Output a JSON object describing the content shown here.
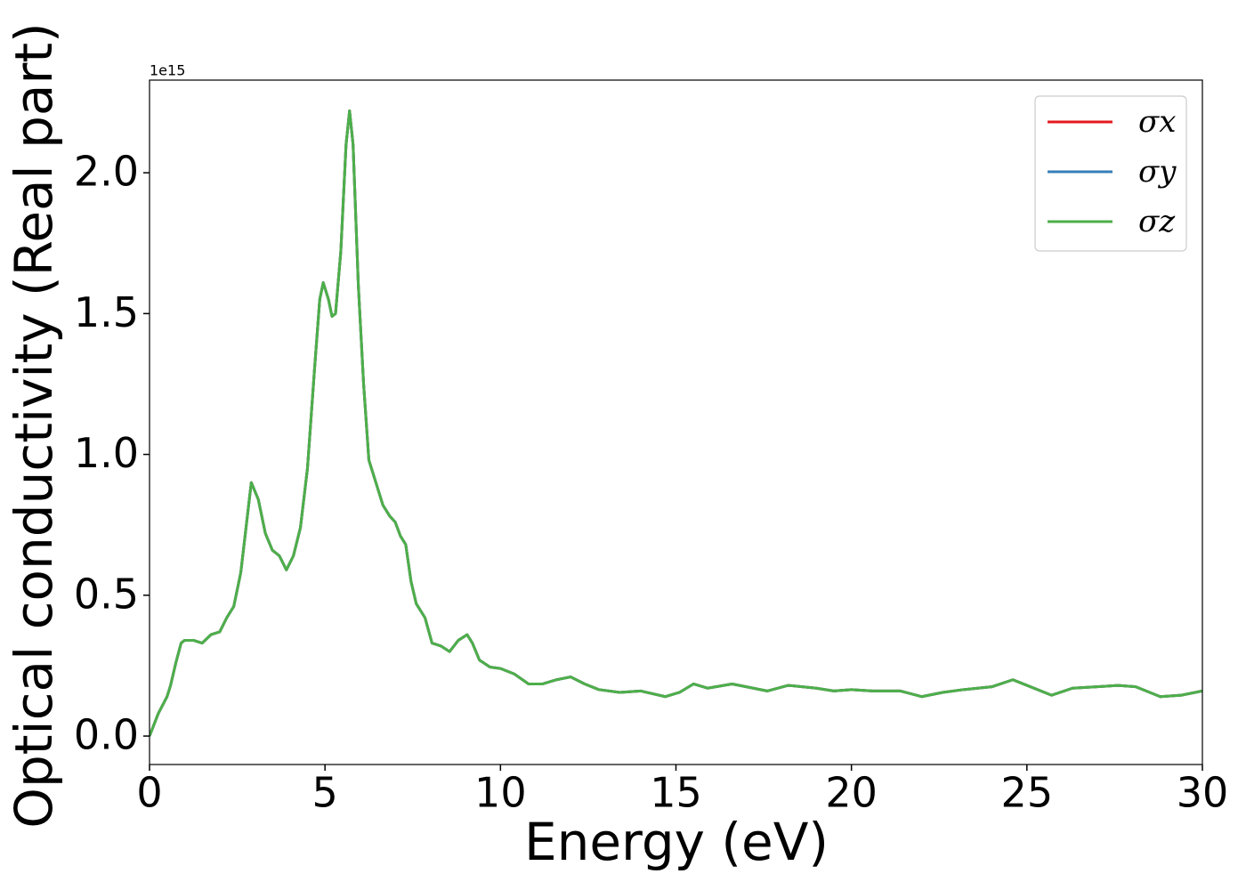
{
  "chart_data": {
    "type": "line",
    "x_label": "Energy (eV)",
    "y_label": "Optical conductivity (Real part)",
    "y_offset_label": "1e15",
    "x": [
      0,
      0.25,
      0.5,
      0.6,
      0.75,
      0.9,
      1.0,
      1.25,
      1.5,
      1.75,
      2.0,
      2.2,
      2.4,
      2.6,
      2.75,
      2.9,
      3.1,
      3.3,
      3.5,
      3.7,
      3.9,
      4.1,
      4.3,
      4.5,
      4.7,
      4.85,
      4.95,
      5.1,
      5.2,
      5.3,
      5.45,
      5.6,
      5.7,
      5.8,
      5.95,
      6.1,
      6.25,
      6.45,
      6.65,
      6.85,
      7.0,
      7.15,
      7.3,
      7.45,
      7.6,
      7.85,
      8.05,
      8.3,
      8.55,
      8.8,
      9.05,
      9.2,
      9.4,
      9.7,
      10.0,
      10.4,
      10.8,
      11.2,
      11.6,
      12.0,
      12.4,
      12.8,
      13.4,
      14.0,
      14.7,
      15.1,
      15.5,
      15.9,
      16.6,
      17.0,
      17.6,
      18.2,
      19.0,
      19.5,
      20.0,
      20.6,
      21.4,
      22.0,
      22.6,
      23.2,
      24.0,
      24.6,
      25.0,
      25.7,
      26.3,
      27.0,
      27.6,
      28.1,
      28.8,
      29.4,
      30.0
    ],
    "series": [
      {
        "name": "σx",
        "color": "#e41a1c",
        "values": [
          0.0,
          0.08,
          0.14,
          0.18,
          0.26,
          0.33,
          0.34,
          0.34,
          0.33,
          0.36,
          0.37,
          0.42,
          0.46,
          0.58,
          0.74,
          0.9,
          0.84,
          0.72,
          0.66,
          0.64,
          0.59,
          0.64,
          0.74,
          0.95,
          1.3,
          1.55,
          1.61,
          1.55,
          1.49,
          1.5,
          1.72,
          2.1,
          2.22,
          2.1,
          1.6,
          1.25,
          0.98,
          0.9,
          0.82,
          0.78,
          0.76,
          0.71,
          0.68,
          0.55,
          0.47,
          0.42,
          0.33,
          0.32,
          0.3,
          0.34,
          0.36,
          0.33,
          0.27,
          0.245,
          0.24,
          0.22,
          0.185,
          0.185,
          0.2,
          0.21,
          0.185,
          0.165,
          0.155,
          0.16,
          0.14,
          0.155,
          0.185,
          0.17,
          0.185,
          0.175,
          0.16,
          0.18,
          0.17,
          0.16,
          0.165,
          0.16,
          0.16,
          0.14,
          0.155,
          0.165,
          0.175,
          0.2,
          0.18,
          0.145,
          0.17,
          0.175,
          0.18,
          0.175,
          0.14,
          0.145,
          0.16
        ]
      },
      {
        "name": "σy",
        "color": "#377eb8",
        "values": [
          0.0,
          0.08,
          0.14,
          0.18,
          0.26,
          0.33,
          0.34,
          0.34,
          0.33,
          0.36,
          0.37,
          0.42,
          0.46,
          0.58,
          0.74,
          0.9,
          0.84,
          0.72,
          0.66,
          0.64,
          0.59,
          0.64,
          0.74,
          0.95,
          1.3,
          1.55,
          1.61,
          1.55,
          1.49,
          1.5,
          1.72,
          2.1,
          2.22,
          2.1,
          1.6,
          1.25,
          0.98,
          0.9,
          0.82,
          0.78,
          0.76,
          0.71,
          0.68,
          0.55,
          0.47,
          0.42,
          0.33,
          0.32,
          0.3,
          0.34,
          0.36,
          0.33,
          0.27,
          0.245,
          0.24,
          0.22,
          0.185,
          0.185,
          0.2,
          0.21,
          0.185,
          0.165,
          0.155,
          0.16,
          0.14,
          0.155,
          0.185,
          0.17,
          0.185,
          0.175,
          0.16,
          0.18,
          0.17,
          0.16,
          0.165,
          0.16,
          0.16,
          0.14,
          0.155,
          0.165,
          0.175,
          0.2,
          0.18,
          0.145,
          0.17,
          0.175,
          0.18,
          0.175,
          0.14,
          0.145,
          0.16
        ]
      },
      {
        "name": "σz",
        "color": "#4daf4a",
        "values": [
          0.0,
          0.08,
          0.14,
          0.18,
          0.26,
          0.33,
          0.34,
          0.34,
          0.33,
          0.36,
          0.37,
          0.42,
          0.46,
          0.58,
          0.74,
          0.9,
          0.84,
          0.72,
          0.66,
          0.64,
          0.59,
          0.64,
          0.74,
          0.95,
          1.3,
          1.55,
          1.61,
          1.55,
          1.49,
          1.5,
          1.72,
          2.1,
          2.22,
          2.1,
          1.6,
          1.25,
          0.98,
          0.9,
          0.82,
          0.78,
          0.76,
          0.71,
          0.68,
          0.55,
          0.47,
          0.42,
          0.33,
          0.32,
          0.3,
          0.34,
          0.36,
          0.33,
          0.27,
          0.245,
          0.24,
          0.22,
          0.185,
          0.185,
          0.2,
          0.21,
          0.185,
          0.165,
          0.155,
          0.16,
          0.14,
          0.155,
          0.185,
          0.17,
          0.185,
          0.175,
          0.16,
          0.18,
          0.17,
          0.16,
          0.165,
          0.16,
          0.16,
          0.14,
          0.155,
          0.165,
          0.175,
          0.2,
          0.18,
          0.145,
          0.17,
          0.175,
          0.18,
          0.175,
          0.14,
          0.145,
          0.16
        ]
      }
    ],
    "xlim": [
      0,
      30
    ],
    "xticks": [
      0,
      5,
      10,
      15,
      20,
      25,
      30
    ],
    "ylim": [
      -0.101,
      2.329
    ],
    "yticks": [
      {
        "value": 0,
        "label": "0.0"
      },
      0.5,
      {
        "value": 1,
        "label": "1.0"
      },
      1.5,
      {
        "value": 2,
        "label": "2.0"
      }
    ],
    "grid": false,
    "legend": "upper right"
  }
}
